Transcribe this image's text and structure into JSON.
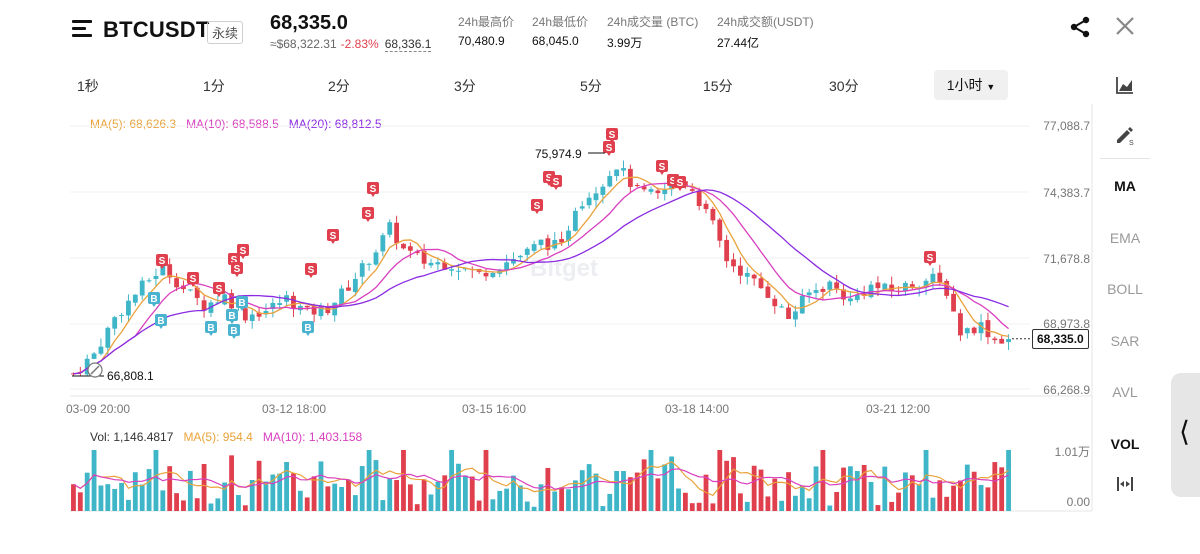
{
  "header": {
    "symbol": "BTCUSDT",
    "contract_type": "永续",
    "last_price": "68,335.0",
    "index_price": "≈$68,322.31",
    "change_pct": "-2.83%",
    "mark_price": "68,336.1",
    "stats": [
      {
        "label": "24h最高价",
        "value": "70,480.9"
      },
      {
        "label": "24h最低价",
        "value": "68,045.0"
      },
      {
        "label": "24h成交量 (BTC)",
        "value": "3.99万"
      },
      {
        "label": "24h成交额(USDT)",
        "value": "27.44亿"
      }
    ]
  },
  "intervals": [
    "1秒",
    "1分",
    "2分",
    "3分",
    "5分",
    "15分",
    "30分"
  ],
  "active_interval": "1小时",
  "indicators_legend": {
    "ma5": "MA(5): 68,626.3",
    "ma10": "MA(10): 68,588.5",
    "ma20": "MA(20): 68,812.5"
  },
  "volume_legend": {
    "vol": "Vol: 1,146.4817",
    "ma5": "MA(5): 954.4",
    "ma10": "MA(10): 1,403.158"
  },
  "sidebar": {
    "items": [
      "MA",
      "EMA",
      "BOLL",
      "SAR",
      "AVL",
      "VOL"
    ],
    "active": [
      "MA",
      "VOL"
    ]
  },
  "watermark": "Bitget",
  "colors": {
    "up": "#3fb6c8",
    "down": "#e0404e",
    "ma5": "#e9a23b",
    "ma10": "#d93fbf",
    "ma20": "#8a2be2",
    "sell_marker": "#e0404e",
    "buy_marker": "#4ab3d0"
  },
  "chart_data": {
    "type": "candlestick",
    "price_axis_ticks": [
      "77,088.7",
      "74,383.7",
      "71,678.8",
      "68,973.8",
      "66,268.9"
    ],
    "time_axis_ticks": [
      "03-09 20:00",
      "03-12 18:00",
      "03-15 16:00",
      "03-18 14:00",
      "03-21 12:00"
    ],
    "volume_axis_ticks": [
      "1.01万",
      "0.00"
    ],
    "current_price_label": "68,335.0",
    "high_annotation": "75,974.9",
    "low_annotation": "66,808.1",
    "ylim": [
      66268.9,
      77088.7
    ],
    "close_path": [
      [
        0,
        66900
      ],
      [
        3,
        67700
      ],
      [
        6,
        69200
      ],
      [
        10,
        70500
      ],
      [
        13,
        71300
      ],
      [
        16,
        70400
      ],
      [
        19,
        69700
      ],
      [
        22,
        70100
      ],
      [
        25,
        69300
      ],
      [
        28,
        69500
      ],
      [
        31,
        70000
      ],
      [
        34,
        69400
      ],
      [
        37,
        69600
      ],
      [
        40,
        70500
      ],
      [
        44,
        72000
      ],
      [
        46,
        72900
      ],
      [
        48,
        72000
      ],
      [
        51,
        71500
      ],
      [
        55,
        71400
      ],
      [
        59,
        71000
      ],
      [
        63,
        71500
      ],
      [
        66,
        71900
      ],
      [
        68,
        72300
      ],
      [
        71,
        72100
      ],
      [
        73,
        73800
      ],
      [
        76,
        74500
      ],
      [
        79,
        75500
      ],
      [
        82,
        74400
      ],
      [
        85,
        74200
      ],
      [
        88,
        74900
      ],
      [
        90,
        74500
      ],
      [
        93,
        73000
      ],
      [
        95,
        71600
      ],
      [
        98,
        70900
      ],
      [
        101,
        70200
      ],
      [
        104,
        69200
      ],
      [
        107,
        70200
      ],
      [
        110,
        70600
      ],
      [
        113,
        69900
      ],
      [
        116,
        70500
      ],
      [
        119,
        70300
      ],
      [
        122,
        70600
      ],
      [
        125,
        70800
      ],
      [
        127,
        70300
      ],
      [
        129,
        68600
      ],
      [
        132,
        68900
      ],
      [
        134,
        68300
      ],
      [
        136,
        68335
      ]
    ]
  }
}
